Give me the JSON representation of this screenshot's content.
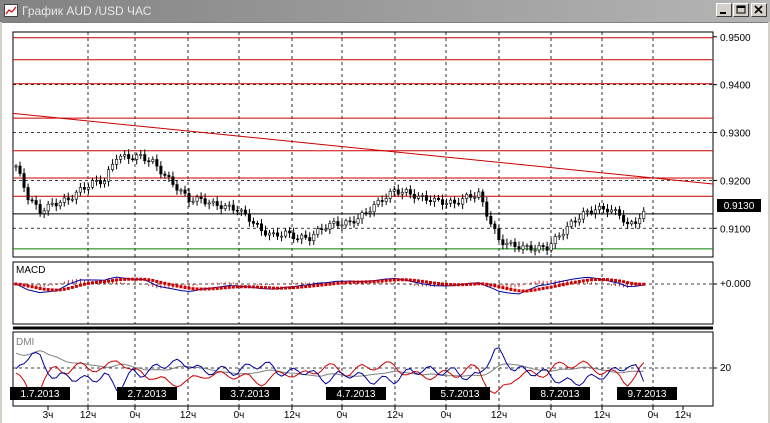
{
  "window": {
    "title": "График AUD /USD  ЧАС"
  },
  "price_axis": {
    "labels": [
      "0.9500",
      "0.9400",
      "0.9300",
      "0.9200",
      "0.9100"
    ],
    "current_price": "0.9130"
  },
  "macd": {
    "label": "MACD",
    "axis_label": "+0.000"
  },
  "dmi": {
    "label": "DMI",
    "axis_label": "20"
  },
  "time_axis": {
    "dates": [
      "1.7.2013",
      "2.7.2013",
      "3.7.2013",
      "4.7.2013",
      "5.7.2013",
      "8.7.2013",
      "9.7.2013"
    ],
    "hours": [
      "3ч",
      "12ч",
      "0ч",
      "12ч",
      "0ч",
      "12ч",
      "0ч",
      "12ч",
      "0ч",
      "12ч",
      "0ч",
      "12ч",
      "0ч",
      "12ч"
    ]
  },
  "colors": {
    "support_line": "#008000",
    "resistance_lines": "#cc0000",
    "trend_line": "#cc0000",
    "macd_line": "#0000a0",
    "signal_line": "#cc0000",
    "dmi_plus": "#cc0000",
    "dmi_minus": "#0000a0",
    "adx": "#808080"
  },
  "chart_data": {
    "type": "candlestick",
    "symbol": "AUD/USD",
    "timeframe": "hour",
    "ylim": [
      0.904,
      0.951
    ],
    "y_ticks": [
      0.91,
      0.92,
      0.93,
      0.94,
      0.95
    ],
    "last_price": 0.913,
    "horizontal_levels": [
      0.9498,
      0.9452,
      0.9402,
      0.933,
      0.9262,
      0.9205,
      0.9167,
      0.9057
    ],
    "trend_line": [
      {
        "x": 0,
        "y": 0.934
      },
      {
        "x": 168,
        "y": 0.9197
      }
    ],
    "close_series": [
      {
        "x": 0,
        "y": 0.923
      },
      {
        "x": 3,
        "y": 0.9165
      },
      {
        "x": 6,
        "y": 0.9135
      },
      {
        "x": 9,
        "y": 0.915
      },
      {
        "x": 13,
        "y": 0.916
      },
      {
        "x": 16,
        "y": 0.918
      },
      {
        "x": 19,
        "y": 0.9195
      },
      {
        "x": 22,
        "y": 0.92
      },
      {
        "x": 25,
        "y": 0.925
      },
      {
        "x": 28,
        "y": 0.9248
      },
      {
        "x": 31,
        "y": 0.925
      },
      {
        "x": 34,
        "y": 0.9238
      },
      {
        "x": 37,
        "y": 0.921
      },
      {
        "x": 40,
        "y": 0.9185
      },
      {
        "x": 43,
        "y": 0.916
      },
      {
        "x": 46,
        "y": 0.916
      },
      {
        "x": 49,
        "y": 0.915
      },
      {
        "x": 52,
        "y": 0.9145
      },
      {
        "x": 55,
        "y": 0.914
      },
      {
        "x": 58,
        "y": 0.912
      },
      {
        "x": 61,
        "y": 0.9095
      },
      {
        "x": 64,
        "y": 0.9085
      },
      {
        "x": 67,
        "y": 0.909
      },
      {
        "x": 70,
        "y": 0.908
      },
      {
        "x": 73,
        "y": 0.908
      },
      {
        "x": 76,
        "y": 0.91
      },
      {
        "x": 79,
        "y": 0.911
      },
      {
        "x": 82,
        "y": 0.911
      },
      {
        "x": 85,
        "y": 0.912
      },
      {
        "x": 88,
        "y": 0.914
      },
      {
        "x": 91,
        "y": 0.916
      },
      {
        "x": 94,
        "y": 0.9178
      },
      {
        "x": 97,
        "y": 0.9175
      },
      {
        "x": 100,
        "y": 0.9165
      },
      {
        "x": 103,
        "y": 0.916
      },
      {
        "x": 106,
        "y": 0.9155
      },
      {
        "x": 109,
        "y": 0.9152
      },
      {
        "x": 112,
        "y": 0.9165
      },
      {
        "x": 115,
        "y": 0.9172
      },
      {
        "x": 117,
        "y": 0.913
      },
      {
        "x": 120,
        "y": 0.9075
      },
      {
        "x": 123,
        "y": 0.9065
      },
      {
        "x": 126,
        "y": 0.906
      },
      {
        "x": 129,
        "y": 0.9058
      },
      {
        "x": 132,
        "y": 0.906
      },
      {
        "x": 135,
        "y": 0.9085
      },
      {
        "x": 138,
        "y": 0.911
      },
      {
        "x": 141,
        "y": 0.913
      },
      {
        "x": 144,
        "y": 0.914
      },
      {
        "x": 147,
        "y": 0.914
      },
      {
        "x": 150,
        "y": 0.913
      },
      {
        "x": 152,
        "y": 0.9105
      },
      {
        "x": 154,
        "y": 0.9115
      },
      {
        "x": 156,
        "y": 0.913
      }
    ]
  }
}
